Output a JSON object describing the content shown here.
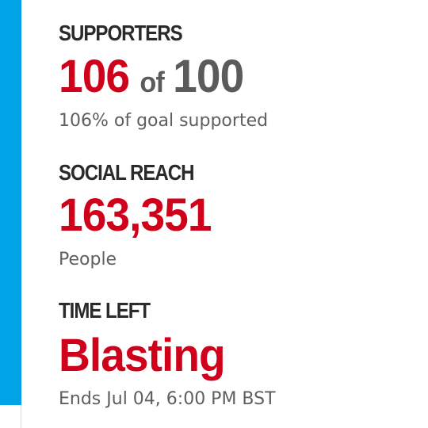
{
  "colors": {
    "accent": "#00a3e6",
    "highlight_red": "#d0021b",
    "value_grey": "#5b5b5b",
    "label_dark": "#2a2a2a",
    "sub_grey": "#5f5f5f"
  },
  "supporters": {
    "label": "SUPPORTERS",
    "current": "106",
    "of_word": "of",
    "goal": "100",
    "subtext": "106% of goal supported"
  },
  "social_reach": {
    "label": "SOCIAL REACH",
    "value": "163,351",
    "subtext": "People"
  },
  "time_left": {
    "label": "TIME LEFT",
    "value": "Blasting",
    "subtext": "Ends Jul 04, 6:00 PM BST"
  }
}
